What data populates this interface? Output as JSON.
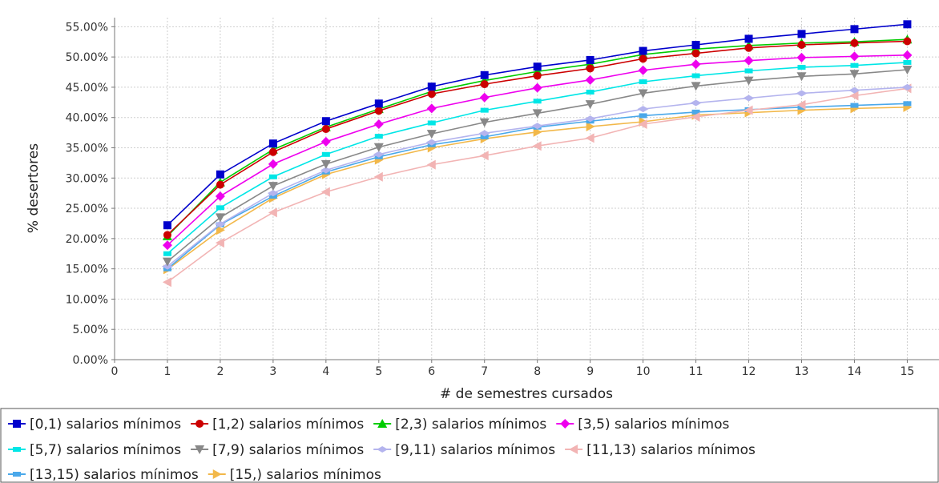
{
  "chart_data": {
    "type": "line",
    "xlabel": "# de semestres cursados",
    "ylabel": "% desertores",
    "xlim": [
      0,
      15.6
    ],
    "ylim": [
      0,
      56.5
    ],
    "x_ticks": [
      "0",
      "1",
      "2",
      "3",
      "4",
      "5",
      "6",
      "7",
      "8",
      "9",
      "10",
      "11",
      "12",
      "13",
      "14",
      "15"
    ],
    "y_ticks": [
      "0.00%",
      "5.00%",
      "10.00%",
      "15.00%",
      "20.00%",
      "25.00%",
      "30.00%",
      "35.00%",
      "40.00%",
      "45.00%",
      "50.00%",
      "55.00%"
    ],
    "grid": true,
    "legend_position": "bottom",
    "x": [
      1,
      2,
      3,
      4,
      5,
      6,
      7,
      8,
      9,
      10,
      11,
      12,
      13,
      14,
      15
    ],
    "series": [
      {
        "name": "[0,1) salarios mínimos",
        "color": "#0000cc",
        "marker": "square",
        "values": [
          22.2,
          30.6,
          35.7,
          39.4,
          42.3,
          45.1,
          47.0,
          48.4,
          49.5,
          51.0,
          52.0,
          53.0,
          53.8,
          54.6,
          55.4
        ]
      },
      {
        "name": "[1,2) salarios mínimos",
        "color": "#cc0000",
        "marker": "circle",
        "values": [
          20.6,
          28.9,
          34.3,
          38.1,
          41.1,
          43.9,
          45.5,
          46.9,
          48.1,
          49.7,
          50.6,
          51.5,
          52.0,
          52.3,
          52.6
        ]
      },
      {
        "name": "[2,3) salarios mínimos",
        "color": "#00cc00",
        "marker": "triangle-up",
        "values": [
          20.4,
          29.3,
          34.7,
          38.4,
          41.4,
          44.3,
          46.1,
          47.6,
          48.8,
          50.4,
          51.3,
          51.9,
          52.3,
          52.5,
          52.9
        ]
      },
      {
        "name": "[3,5) salarios mínimos",
        "color": "#ee00ee",
        "marker": "diamond",
        "values": [
          18.9,
          27.0,
          32.3,
          36.0,
          38.9,
          41.5,
          43.3,
          44.9,
          46.2,
          47.8,
          48.8,
          49.4,
          49.9,
          50.1,
          50.3
        ]
      },
      {
        "name": "[5,7) salarios mínimos",
        "color": "#00e6e6",
        "marker": "rect",
        "values": [
          17.5,
          25.1,
          30.2,
          33.9,
          36.9,
          39.1,
          41.2,
          42.7,
          44.2,
          45.9,
          46.9,
          47.7,
          48.3,
          48.6,
          49.1
        ]
      },
      {
        "name": "[7,9) salarios mínimos",
        "color": "#888888",
        "marker": "triangle-down",
        "values": [
          16.2,
          23.5,
          28.7,
          32.3,
          35.1,
          37.3,
          39.2,
          40.7,
          42.2,
          44.0,
          45.2,
          46.1,
          46.8,
          47.2,
          47.9
        ]
      },
      {
        "name": "[9,11) salarios mínimos",
        "color": "#b4b4ee",
        "marker": "diamond-h",
        "values": [
          15.4,
          22.4,
          27.5,
          31.3,
          33.9,
          35.9,
          37.4,
          38.6,
          39.8,
          41.4,
          42.4,
          43.2,
          44.0,
          44.5,
          45.0
        ]
      },
      {
        "name": "[11,13) salarios mínimos",
        "color": "#f2b4b4",
        "marker": "triangle-left",
        "values": [
          12.8,
          19.3,
          24.3,
          27.7,
          30.2,
          32.2,
          33.7,
          35.3,
          36.6,
          38.9,
          40.1,
          41.2,
          42.1,
          43.6,
          44.8
        ]
      },
      {
        "name": "[13,15) salarios mínimos",
        "color": "#4aa8ea",
        "marker": "rect",
        "values": [
          15.0,
          22.3,
          27.0,
          31.0,
          33.5,
          35.5,
          36.8,
          38.4,
          39.4,
          40.3,
          40.9,
          41.3,
          41.7,
          42.0,
          42.3
        ]
      },
      {
        "name": "[15,) salarios mínimos",
        "color": "#f2b84a",
        "marker": "triangle-right",
        "values": [
          14.9,
          21.4,
          26.7,
          30.6,
          33.0,
          35.0,
          36.5,
          37.6,
          38.5,
          39.3,
          40.4,
          40.8,
          41.2,
          41.5,
          41.7
        ]
      }
    ]
  }
}
